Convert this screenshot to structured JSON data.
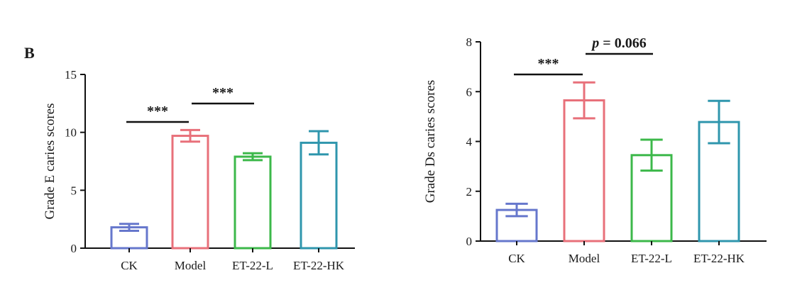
{
  "panel_label": "B",
  "chart_data": [
    {
      "type": "bar",
      "categories": [
        "CK",
        "Model",
        "ET-22-L",
        "ET-22-HK"
      ],
      "values": [
        1.8,
        9.7,
        7.9,
        9.1
      ],
      "error": [
        0.3,
        0.5,
        0.3,
        1.0
      ],
      "colors": [
        "#6677cc",
        "#e8707a",
        "#3cb84a",
        "#2f96ad"
      ],
      "ylabel": "Grade E caries scores",
      "ylim": [
        0,
        15
      ],
      "yticks": [
        "0",
        "5",
        "10",
        "15"
      ],
      "grid": false,
      "annotations": [
        {
          "text": "***",
          "from": "CK",
          "to": "Model"
        },
        {
          "text": "***",
          "from": "Model",
          "to": "ET-22-L"
        }
      ]
    },
    {
      "type": "bar",
      "categories": [
        "CK",
        "Model",
        "ET-22-L",
        "ET-22-HK"
      ],
      "values": [
        1.25,
        5.65,
        3.45,
        4.78
      ],
      "error": [
        0.25,
        0.72,
        0.62,
        0.85
      ],
      "colors": [
        "#6677cc",
        "#e8707a",
        "#3cb84a",
        "#2f96ad"
      ],
      "ylabel": "Grade Ds caries scores",
      "ylim": [
        0,
        8
      ],
      "yticks": [
        "0",
        "2",
        "4",
        "6",
        "8"
      ],
      "grid": false,
      "annotations": [
        {
          "text": "***",
          "from": "CK",
          "to": "Model"
        },
        {
          "text_prefix": "p",
          "text": " = 0.066",
          "from": "Model",
          "to": "ET-22-L"
        }
      ]
    }
  ]
}
